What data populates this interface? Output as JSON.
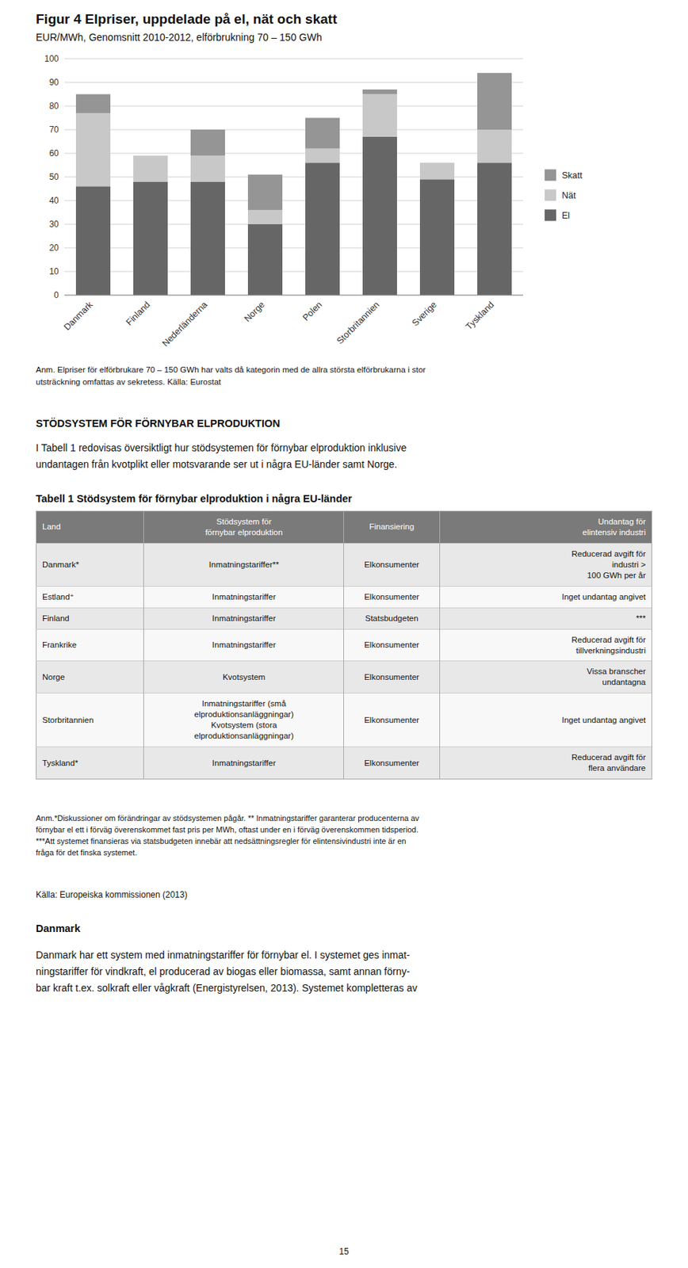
{
  "chart_data": {
    "type": "bar",
    "title": "Figur 4 Elpriser, uppdelade på el, nät och skatt",
    "subtitle": "EUR/MWh, Genomsnitt 2010-2012, elförbrukning 70 – 150 GWh",
    "categories": [
      "Danmark",
      "Finland",
      "Nederländerna",
      "Norge",
      "Polen",
      "Storbritannien",
      "Sverige",
      "Tyskland"
    ],
    "series": [
      {
        "name": "El",
        "color": "#666666",
        "values": [
          46,
          48,
          48,
          30,
          56,
          67,
          49,
          56
        ]
      },
      {
        "name": "Nät",
        "color": "#c8c8c8",
        "values": [
          31,
          11,
          11,
          6,
          6,
          18,
          7,
          14
        ]
      },
      {
        "name": "Skatt",
        "color": "#959595",
        "values": [
          8,
          0,
          11,
          15,
          13,
          2,
          0,
          24
        ]
      }
    ],
    "stacked": true,
    "ylim": [
      0,
      100
    ],
    "yticks": [
      0,
      10,
      20,
      30,
      40,
      50,
      60,
      70,
      80,
      90,
      100
    ],
    "grid": true,
    "legend": "right",
    "annotations": [
      "Anm. Elpriser för elförbrukare 70 – 150 GWh har valts då kategorin med de allra största elförbrukarna i stor\nutsträckning omfattas av sekretess. Källa: Eurostat"
    ]
  },
  "page": {
    "section_title": "STÖDSYSTEM FÖR FÖRNYBAR ELPRODUKTION",
    "section_body": "I Tabell 1 redovisas översiktligt hur stödsystemen för förnybar elproduktion inklusive\nundantagen från kvotplikt eller motsvarande ser ut i några EU-länder samt Norge.",
    "table": {
      "title": "Tabell 1 Stödsystem för förnybar elproduktion i några EU-länder",
      "header": [
        "Land",
        "Stödsystem för\nförnybar elproduktion",
        "Finansiering",
        "Undantag för\nelintensiv industri"
      ],
      "rows": [
        [
          "Danmark*",
          "Inmatningstariffer**",
          "Elkonsumenter",
          "Reducerad avgift för\nindustri >\n100 GWh per år"
        ],
        [
          "Estland⁺",
          "Inmatningstariffer",
          "Elkonsumenter",
          "Inget undantag angivet"
        ],
        [
          "Finland",
          "Inmatningstariffer",
          "Statsbudgeten",
          "***"
        ],
        [
          "Frankrike",
          "Inmatningstariffer",
          "Elkonsumenter",
          "Reducerad avgift för\ntillverkningsindustri"
        ],
        [
          "Norge",
          "Kvotsystem",
          "Elkonsumenter",
          "Vissa branscher\nundantagna"
        ],
        [
          "Storbritannien",
          "Inmatningstariffer (små\nelproduktionsanläggningar)\nKvotsystem (stora\nelproduktionsanläggningar)",
          "Elkonsumenter",
          "Inget undantag angivet"
        ],
        [
          "Tyskland*",
          "Inmatningstariffer",
          "Elkonsumenter",
          "Reducerad avgift för\nflera användare"
        ]
      ]
    },
    "table_note": "Anm.*Diskussioner om förändringar av stödsystemen pågår. ** Inmatningstariffer garanterar producenterna av\nförnybar el ett i förväg överenskommet fast pris per MWh, oftast under en i förväg överenskommen tidsperiod.\n***Att systemet finansieras via statsbudgeten innebär att nedsättningsregler för elintensivindustri inte är en\nfråga för det finska systemet.",
    "source": "Källa: Europeiska kommissionen (2013)",
    "section2_title": "Danmark",
    "section2_body": "Danmark har ett system med inmatningstariffer för förnybar el. I systemet ges inmat-\nningstariffer för vindkraft, el producerad av biogas eller biomassa, samt annan förny-\nbar kraft t.ex. solkraft eller vågkraft (Energistyrelsen, 2013). Systemet kompletteras av",
    "page_number": "15"
  }
}
